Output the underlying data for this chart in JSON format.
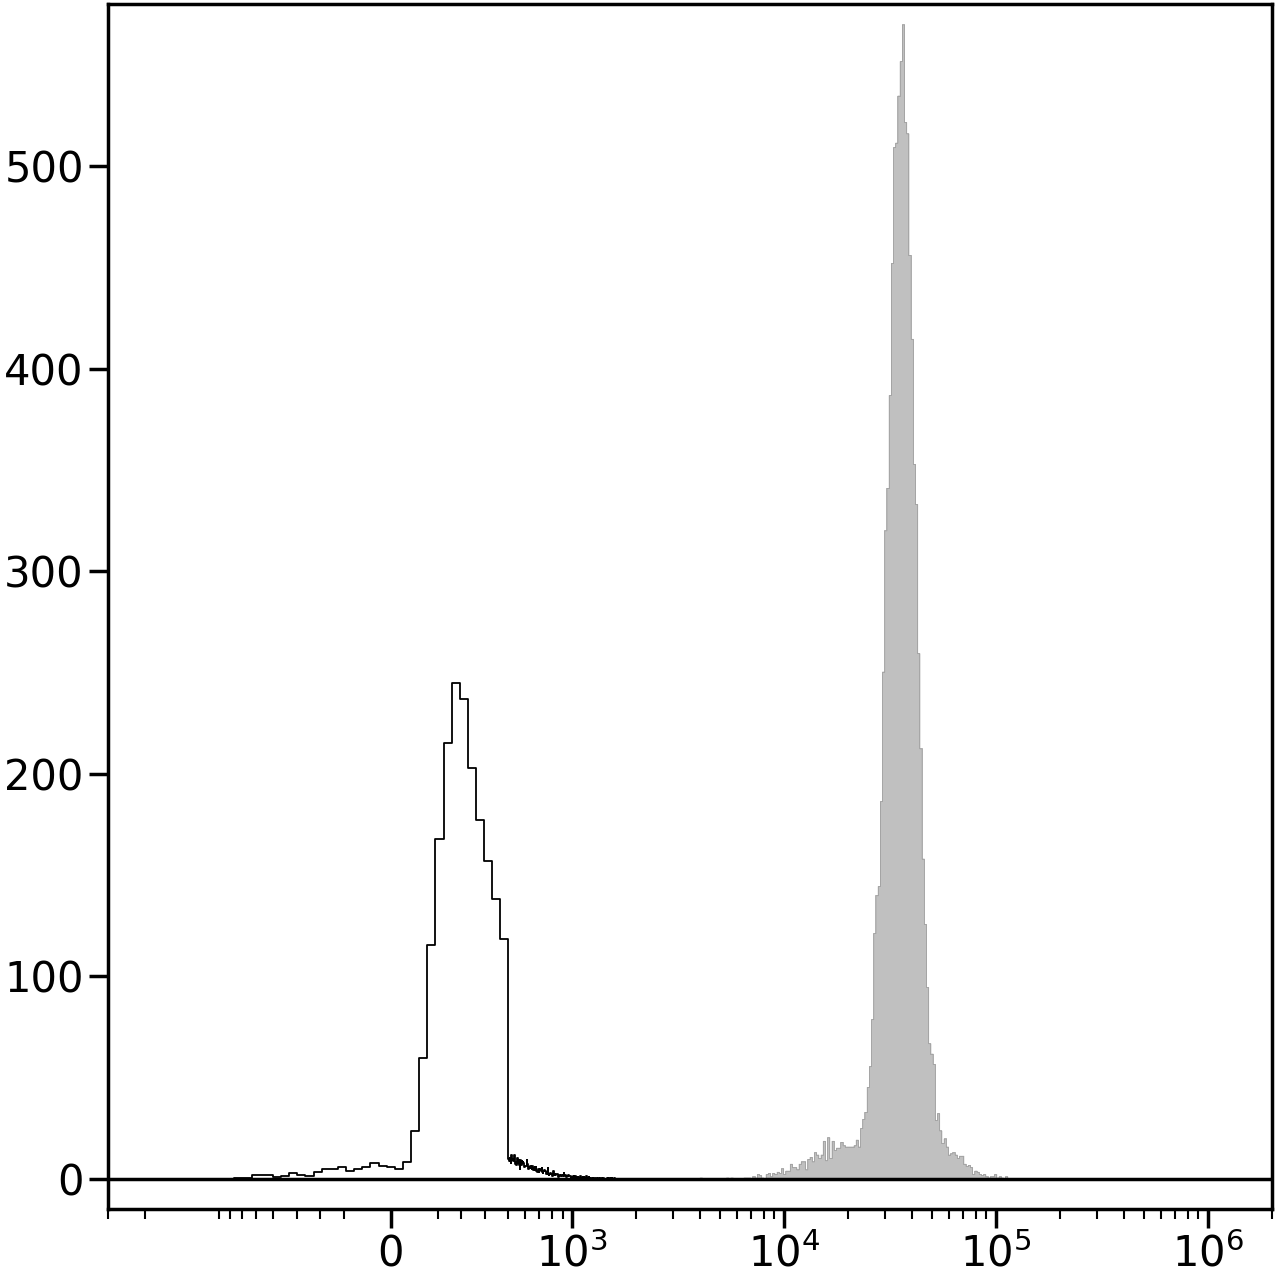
{
  "title": "",
  "xlabel": "",
  "ylabel": "",
  "ylim": [
    -15,
    580
  ],
  "yticks": [
    0,
    100,
    200,
    300,
    400,
    500
  ],
  "background_color": "#ffffff",
  "black_hist_color": "#000000",
  "gray_hist_color": "#c0c0c0",
  "gray_hist_edge": "#a0a0a0",
  "figsize": [
    12.76,
    12.8
  ],
  "dpi": 100,
  "black_peak_height": 245,
  "gray_peak_height": 570,
  "linthresh": 500,
  "linscale": 0.5,
  "xlim_min": -3000,
  "xlim_max": 2000000,
  "xtick_positions": [
    0,
    1000,
    10000,
    100000,
    1000000
  ],
  "xtick_labels": [
    "0",
    "$10^3$",
    "$10^4$",
    "$10^5$",
    "$10^6$"
  ]
}
